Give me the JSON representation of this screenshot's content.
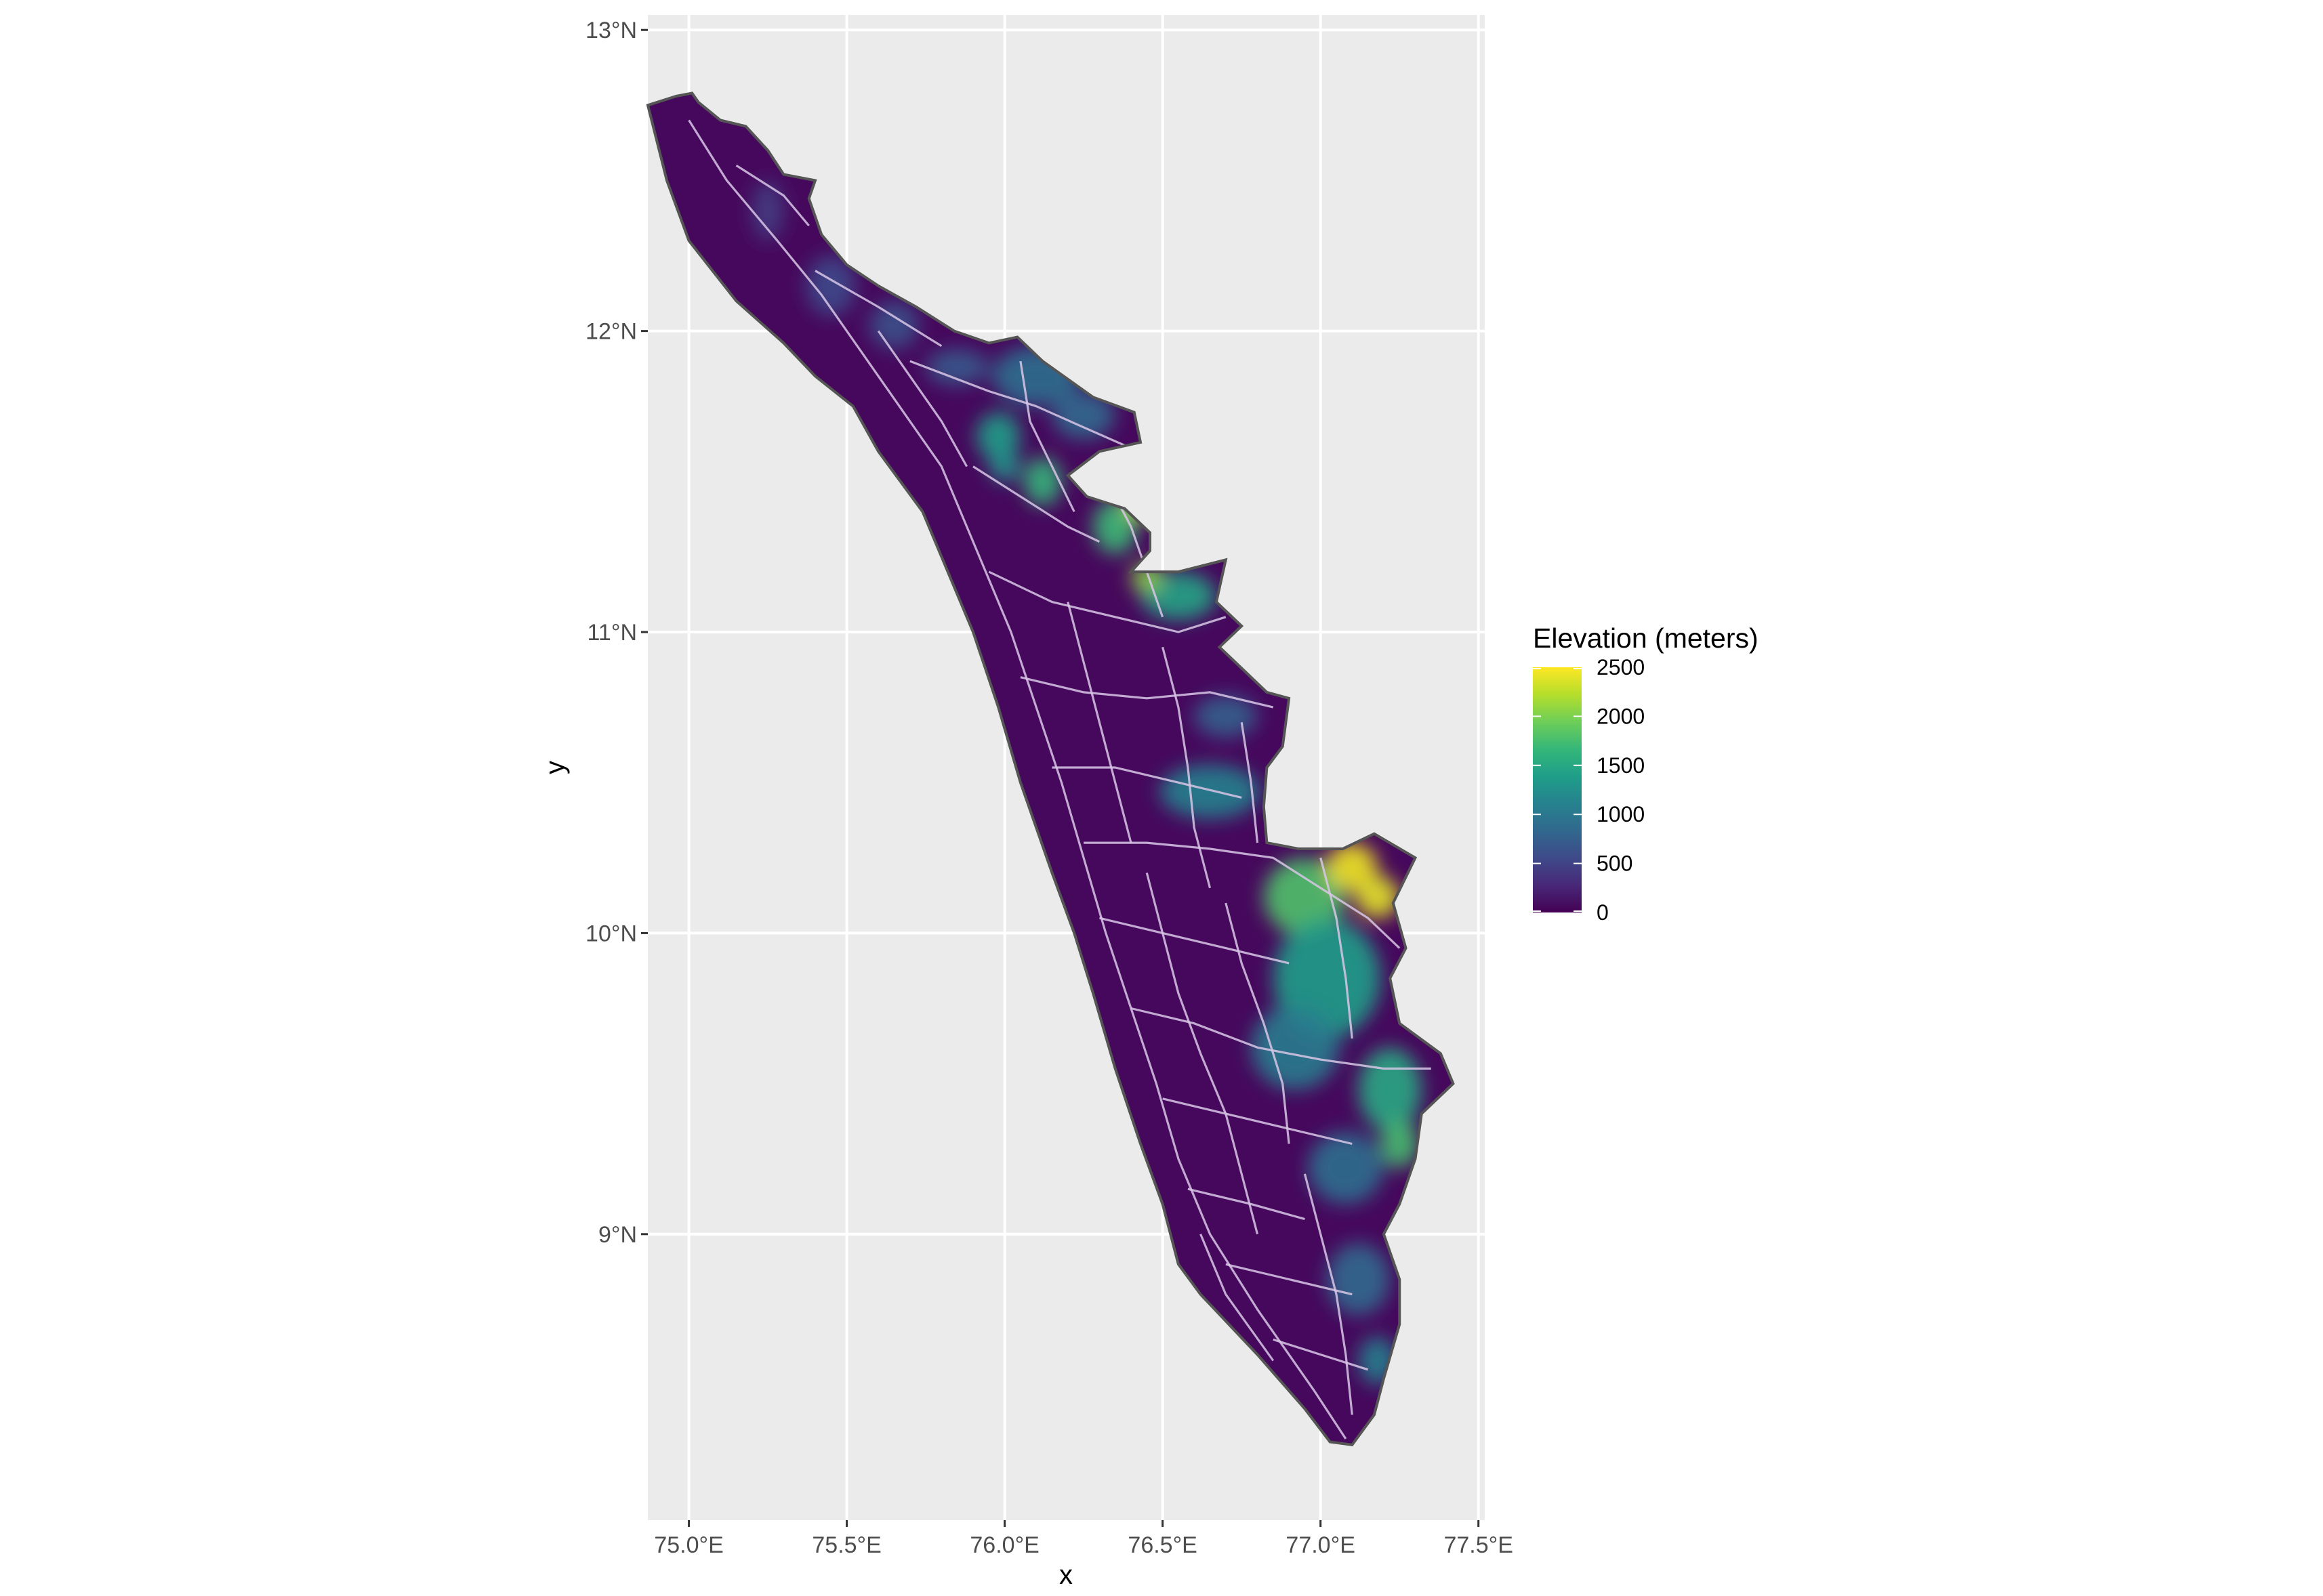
{
  "chart_data": {
    "type": "heatmap",
    "map": "elevation raster clipped to state outline, with road network overlay",
    "xlabel": "x",
    "ylabel": "y",
    "xlim": [
      74.87,
      77.52
    ],
    "ylim": [
      8.05,
      13.05
    ],
    "x_ticks": [
      {
        "value": 75.0,
        "label": "75.0°E"
      },
      {
        "value": 75.5,
        "label": "75.5°E"
      },
      {
        "value": 76.0,
        "label": "76.0°E"
      },
      {
        "value": 76.5,
        "label": "76.5°E"
      },
      {
        "value": 77.0,
        "label": "77.0°E"
      },
      {
        "value": 77.5,
        "label": "77.5°E"
      }
    ],
    "y_ticks": [
      {
        "value": 9,
        "label": "9°N"
      },
      {
        "value": 10,
        "label": "10°N"
      },
      {
        "value": 11,
        "label": "11°N"
      },
      {
        "value": 12,
        "label": "12°N"
      },
      {
        "value": 13,
        "label": "13°N"
      }
    ],
    "grid": true,
    "legend": {
      "title": "Elevation (meters)",
      "position": "right",
      "palette": "viridis",
      "range": [
        0,
        2500
      ],
      "breaks": [
        {
          "value": 2500,
          "label": "2500"
        },
        {
          "value": 2000,
          "label": "2000"
        },
        {
          "value": 1500,
          "label": "1500"
        },
        {
          "value": 1000,
          "label": "1000"
        },
        {
          "value": 500,
          "label": "500"
        },
        {
          "value": 0,
          "label": "0"
        }
      ]
    },
    "colors": {
      "panel_background": "#ebebeb",
      "grid_major": "#ffffff",
      "outline": "#555555",
      "roads": "#d8c7e6",
      "viridis": [
        "#440154",
        "#482878",
        "#3e4a89",
        "#31688e",
        "#26828e",
        "#1f9e89",
        "#35b779",
        "#6ece58",
        "#b5de2b",
        "#fde725"
      ]
    },
    "outline_lonlat": [
      [
        74.87,
        12.75
      ],
      [
        74.96,
        12.78
      ],
      [
        75.01,
        12.79
      ],
      [
        75.03,
        12.76
      ],
      [
        75.1,
        12.7
      ],
      [
        75.18,
        12.68
      ],
      [
        75.25,
        12.6
      ],
      [
        75.3,
        12.52
      ],
      [
        75.4,
        12.5
      ],
      [
        75.38,
        12.44
      ],
      [
        75.42,
        12.32
      ],
      [
        75.5,
        12.22
      ],
      [
        75.6,
        12.15
      ],
      [
        75.72,
        12.08
      ],
      [
        75.84,
        12.0
      ],
      [
        75.95,
        11.96
      ],
      [
        76.04,
        11.98
      ],
      [
        76.12,
        11.9
      ],
      [
        76.2,
        11.84
      ],
      [
        76.28,
        11.78
      ],
      [
        76.41,
        11.73
      ],
      [
        76.43,
        11.63
      ],
      [
        76.3,
        11.6
      ],
      [
        76.2,
        11.52
      ],
      [
        76.26,
        11.45
      ],
      [
        76.38,
        11.41
      ],
      [
        76.46,
        11.33
      ],
      [
        76.46,
        11.27
      ],
      [
        76.4,
        11.2
      ],
      [
        76.55,
        11.2
      ],
      [
        76.7,
        11.24
      ],
      [
        76.67,
        11.1
      ],
      [
        76.75,
        11.02
      ],
      [
        76.68,
        10.95
      ],
      [
        76.83,
        10.8
      ],
      [
        76.9,
        10.78
      ],
      [
        76.88,
        10.62
      ],
      [
        76.83,
        10.55
      ],
      [
        76.82,
        10.42
      ],
      [
        76.83,
        10.3
      ],
      [
        76.93,
        10.28
      ],
      [
        77.07,
        10.28
      ],
      [
        77.17,
        10.33
      ],
      [
        77.3,
        10.25
      ],
      [
        77.23,
        10.1
      ],
      [
        77.27,
        9.95
      ],
      [
        77.22,
        9.85
      ],
      [
        77.25,
        9.7
      ],
      [
        77.38,
        9.6
      ],
      [
        77.42,
        9.5
      ],
      [
        77.32,
        9.4
      ],
      [
        77.3,
        9.25
      ],
      [
        77.25,
        9.1
      ],
      [
        77.2,
        9.0
      ],
      [
        77.25,
        8.85
      ],
      [
        77.25,
        8.7
      ],
      [
        77.2,
        8.52
      ],
      [
        77.17,
        8.4
      ],
      [
        77.1,
        8.3
      ],
      [
        77.03,
        8.31
      ],
      [
        76.95,
        8.42
      ],
      [
        76.8,
        8.6
      ],
      [
        76.62,
        8.8
      ],
      [
        76.55,
        8.9
      ],
      [
        76.5,
        9.1
      ],
      [
        76.43,
        9.3
      ],
      [
        76.35,
        9.55
      ],
      [
        76.28,
        9.8
      ],
      [
        76.22,
        10.0
      ],
      [
        76.15,
        10.2
      ],
      [
        76.05,
        10.5
      ],
      [
        75.98,
        10.75
      ],
      [
        75.9,
        11.0
      ],
      [
        75.82,
        11.2
      ],
      [
        75.74,
        11.4
      ],
      [
        75.6,
        11.6
      ],
      [
        75.52,
        11.75
      ],
      [
        75.4,
        11.85
      ],
      [
        75.3,
        11.96
      ],
      [
        75.15,
        12.1
      ],
      [
        75.0,
        12.3
      ],
      [
        74.93,
        12.5
      ],
      [
        74.87,
        12.75
      ]
    ],
    "terrain_lonlat": [
      {
        "lon": 75.25,
        "lat": 12.4,
        "rx": 0.05,
        "ry": 0.1,
        "value": 450
      },
      {
        "lon": 75.45,
        "lat": 12.15,
        "rx": 0.08,
        "ry": 0.1,
        "value": 550
      },
      {
        "lon": 75.65,
        "lat": 12.02,
        "rx": 0.08,
        "ry": 0.08,
        "value": 600
      },
      {
        "lon": 75.85,
        "lat": 11.88,
        "rx": 0.1,
        "ry": 0.06,
        "value": 700
      },
      {
        "lon": 76.1,
        "lat": 11.85,
        "rx": 0.14,
        "ry": 0.1,
        "value": 900
      },
      {
        "lon": 76.25,
        "lat": 11.72,
        "rx": 0.1,
        "ry": 0.08,
        "value": 850
      },
      {
        "lon": 75.98,
        "lat": 11.65,
        "rx": 0.07,
        "ry": 0.08,
        "value": 1400
      },
      {
        "lon": 76.12,
        "lat": 11.5,
        "rx": 0.06,
        "ry": 0.08,
        "value": 1650
      },
      {
        "lon": 76.0,
        "lat": 11.55,
        "rx": 0.05,
        "ry": 0.05,
        "value": 1300
      },
      {
        "lon": 76.35,
        "lat": 11.35,
        "rx": 0.07,
        "ry": 0.09,
        "value": 1700
      },
      {
        "lon": 76.42,
        "lat": 11.42,
        "rx": 0.04,
        "ry": 0.05,
        "value": 2200
      },
      {
        "lon": 76.55,
        "lat": 11.12,
        "rx": 0.12,
        "ry": 0.08,
        "value": 1450
      },
      {
        "lon": 76.45,
        "lat": 11.18,
        "rx": 0.05,
        "ry": 0.05,
        "value": 2050
      },
      {
        "lon": 76.7,
        "lat": 10.72,
        "rx": 0.1,
        "ry": 0.07,
        "value": 750
      },
      {
        "lon": 76.65,
        "lat": 10.47,
        "rx": 0.16,
        "ry": 0.09,
        "value": 1100
      },
      {
        "lon": 76.95,
        "lat": 10.12,
        "rx": 0.13,
        "ry": 0.13,
        "value": 1800
      },
      {
        "lon": 77.1,
        "lat": 10.22,
        "rx": 0.08,
        "ry": 0.08,
        "value": 2450
      },
      {
        "lon": 77.18,
        "lat": 10.12,
        "rx": 0.07,
        "ry": 0.07,
        "value": 2400
      },
      {
        "lon": 77.02,
        "lat": 9.85,
        "rx": 0.17,
        "ry": 0.2,
        "value": 1400
      },
      {
        "lon": 76.92,
        "lat": 9.62,
        "rx": 0.14,
        "ry": 0.14,
        "value": 1050
      },
      {
        "lon": 77.22,
        "lat": 9.48,
        "rx": 0.1,
        "ry": 0.14,
        "value": 1500
      },
      {
        "lon": 77.25,
        "lat": 9.3,
        "rx": 0.06,
        "ry": 0.08,
        "value": 1750
      },
      {
        "lon": 77.08,
        "lat": 9.22,
        "rx": 0.12,
        "ry": 0.12,
        "value": 900
      },
      {
        "lon": 77.12,
        "lat": 8.85,
        "rx": 0.1,
        "ry": 0.12,
        "value": 850
      },
      {
        "lon": 77.18,
        "lat": 8.58,
        "rx": 0.06,
        "ry": 0.08,
        "value": 1100
      }
    ],
    "roads_lonlat": [
      [
        [
          75.0,
          12.7
        ],
        [
          75.12,
          12.5
        ],
        [
          75.28,
          12.3
        ],
        [
          75.42,
          12.12
        ],
        [
          75.6,
          11.85
        ],
        [
          75.8,
          11.55
        ],
        [
          75.92,
          11.25
        ],
        [
          76.02,
          11.0
        ],
        [
          76.1,
          10.75
        ],
        [
          76.18,
          10.5
        ],
        [
          76.25,
          10.25
        ],
        [
          76.32,
          10.0
        ],
        [
          76.4,
          9.75
        ],
        [
          76.48,
          9.5
        ],
        [
          76.55,
          9.25
        ],
        [
          76.65,
          9.0
        ],
        [
          76.8,
          8.75
        ],
        [
          76.98,
          8.48
        ],
        [
          77.08,
          8.32
        ]
      ],
      [
        [
          75.15,
          12.55
        ],
        [
          75.3,
          12.45
        ],
        [
          75.38,
          12.35
        ]
      ],
      [
        [
          75.4,
          12.2
        ],
        [
          75.6,
          12.08
        ],
        [
          75.8,
          11.95
        ]
      ],
      [
        [
          75.7,
          11.9
        ],
        [
          75.95,
          11.8
        ],
        [
          76.1,
          11.75
        ],
        [
          76.25,
          11.68
        ],
        [
          76.38,
          11.62
        ]
      ],
      [
        [
          75.9,
          11.55
        ],
        [
          76.05,
          11.45
        ],
        [
          76.2,
          11.35
        ],
        [
          76.3,
          11.3
        ]
      ],
      [
        [
          75.95,
          11.2
        ],
        [
          76.15,
          11.1
        ],
        [
          76.35,
          11.05
        ],
        [
          76.55,
          11.0
        ],
        [
          76.7,
          11.05
        ]
      ],
      [
        [
          76.05,
          10.85
        ],
        [
          76.25,
          10.8
        ],
        [
          76.45,
          10.78
        ],
        [
          76.65,
          10.8
        ],
        [
          76.85,
          10.75
        ]
      ],
      [
        [
          76.15,
          10.55
        ],
        [
          76.35,
          10.55
        ],
        [
          76.55,
          10.5
        ],
        [
          76.75,
          10.45
        ]
      ],
      [
        [
          76.25,
          10.3
        ],
        [
          76.45,
          10.3
        ],
        [
          76.65,
          10.28
        ],
        [
          76.85,
          10.25
        ],
        [
          77.0,
          10.15
        ],
        [
          77.15,
          10.05
        ],
        [
          77.25,
          9.95
        ]
      ],
      [
        [
          76.3,
          10.05
        ],
        [
          76.5,
          10.0
        ],
        [
          76.7,
          9.95
        ],
        [
          76.9,
          9.9
        ]
      ],
      [
        [
          76.4,
          9.75
        ],
        [
          76.6,
          9.7
        ],
        [
          76.8,
          9.62
        ],
        [
          77.0,
          9.58
        ],
        [
          77.2,
          9.55
        ],
        [
          77.35,
          9.55
        ]
      ],
      [
        [
          76.5,
          9.45
        ],
        [
          76.7,
          9.4
        ],
        [
          76.9,
          9.35
        ],
        [
          77.1,
          9.3
        ]
      ],
      [
        [
          76.58,
          9.15
        ],
        [
          76.78,
          9.1
        ],
        [
          76.95,
          9.05
        ]
      ],
      [
        [
          76.7,
          8.9
        ],
        [
          76.9,
          8.85
        ],
        [
          77.1,
          8.8
        ]
      ],
      [
        [
          76.85,
          8.65
        ],
        [
          77.0,
          8.6
        ],
        [
          77.15,
          8.55
        ]
      ],
      [
        [
          75.6,
          12.0
        ],
        [
          75.7,
          11.85
        ],
        [
          75.8,
          11.7
        ],
        [
          75.88,
          11.55
        ]
      ],
      [
        [
          76.05,
          11.9
        ],
        [
          76.08,
          11.7
        ],
        [
          76.15,
          11.55
        ],
        [
          76.22,
          11.4
        ]
      ],
      [
        [
          76.3,
          11.55
        ],
        [
          76.4,
          11.35
        ],
        [
          76.45,
          11.2
        ],
        [
          76.5,
          11.05
        ]
      ],
      [
        [
          76.2,
          11.1
        ],
        [
          76.25,
          10.9
        ],
        [
          76.3,
          10.7
        ],
        [
          76.35,
          10.5
        ],
        [
          76.4,
          10.3
        ]
      ],
      [
        [
          76.5,
          10.95
        ],
        [
          76.55,
          10.75
        ],
        [
          76.58,
          10.55
        ],
        [
          76.6,
          10.35
        ],
        [
          76.65,
          10.15
        ]
      ],
      [
        [
          76.75,
          10.7
        ],
        [
          76.78,
          10.5
        ],
        [
          76.8,
          10.3
        ]
      ],
      [
        [
          76.45,
          10.2
        ],
        [
          76.5,
          10.0
        ],
        [
          76.55,
          9.8
        ],
        [
          76.62,
          9.6
        ],
        [
          76.7,
          9.4
        ],
        [
          76.75,
          9.2
        ],
        [
          76.8,
          9.0
        ]
      ],
      [
        [
          76.7,
          10.1
        ],
        [
          76.75,
          9.9
        ],
        [
          76.82,
          9.7
        ],
        [
          76.88,
          9.5
        ],
        [
          76.9,
          9.3
        ]
      ],
      [
        [
          77.0,
          10.25
        ],
        [
          77.05,
          10.05
        ],
        [
          77.08,
          9.85
        ],
        [
          77.1,
          9.65
        ]
      ],
      [
        [
          76.95,
          9.2
        ],
        [
          77.0,
          9.0
        ],
        [
          77.05,
          8.8
        ],
        [
          77.08,
          8.6
        ],
        [
          77.1,
          8.4
        ]
      ],
      [
        [
          76.62,
          9.0
        ],
        [
          76.7,
          8.8
        ],
        [
          76.85,
          8.58
        ]
      ]
    ]
  }
}
